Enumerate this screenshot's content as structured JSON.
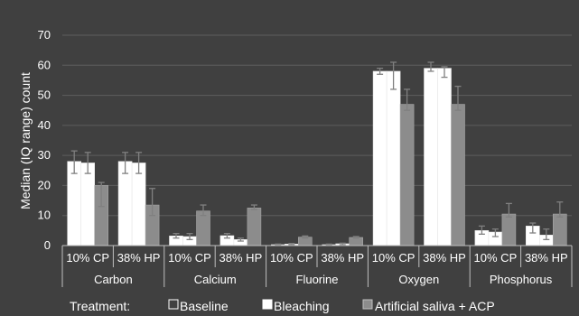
{
  "chart_data": {
    "type": "bar",
    "ylabel": "Median (IQ range) count",
    "ylim": [
      0,
      70
    ],
    "yticks": [
      0,
      10,
      20,
      30,
      40,
      50,
      60,
      70
    ],
    "grid": true,
    "legend_position": "bottom",
    "colors": {
      "Baseline": "#ffffff",
      "Bleaching": "#ffffff",
      "Artificial saliva + ACP": "#8c8c8c"
    },
    "elements": [
      "Carbon",
      "Calcium",
      "Fluorine",
      "Oxygen",
      "Phosphorus"
    ],
    "treatments": [
      "10% CP",
      "38% HP"
    ],
    "categories": [
      "Carbon | 10% CP",
      "Carbon | 38% HP",
      "Calcium | 10% CP",
      "Calcium | 38% HP",
      "Fluorine | 10% CP",
      "Fluorine | 38% HP",
      "Oxygen | 10% CP",
      "Oxygen | 38% HP",
      "Phosphorus | 10% CP",
      "Phosphorus | 38% HP"
    ],
    "series": [
      {
        "name": "Baseline",
        "values": [
          28,
          28,
          3.2,
          3.3,
          0.3,
          0.3,
          58,
          59,
          5,
          6.5
        ],
        "err_low": [
          24,
          24,
          2.5,
          2.5,
          0.2,
          0.2,
          57,
          58,
          3.8,
          4.2
        ],
        "err_high": [
          31.5,
          31,
          4,
          4,
          0.5,
          0.5,
          59,
          61,
          6.5,
          7.5
        ]
      },
      {
        "name": "Bleaching",
        "values": [
          27.5,
          27.5,
          3,
          2,
          0.5,
          0.6,
          58,
          59,
          4.5,
          3.5
        ],
        "err_low": [
          24,
          24,
          2,
          1.5,
          0.3,
          0.3,
          52,
          56,
          3,
          2
        ],
        "err_high": [
          31,
          31,
          4,
          2.5,
          0.7,
          0.8,
          61,
          59.5,
          5.5,
          5.5
        ]
      },
      {
        "name": "Artificial saliva + ACP",
        "values": [
          20,
          13.5,
          11.5,
          12.5,
          2.8,
          2.7,
          47,
          47,
          10.5,
          10.5
        ],
        "err_low": [
          13,
          10,
          10,
          12,
          2.5,
          2.5,
          45,
          45,
          9.5,
          9.5
        ],
        "err_high": [
          21,
          19,
          13.5,
          13.5,
          3.2,
          3,
          52,
          53,
          14,
          14.5
        ]
      }
    ]
  },
  "legend": {
    "title": "Treatment:",
    "items": [
      "Baseline",
      "Bleaching",
      "Artificial saliva + ACP"
    ]
  }
}
